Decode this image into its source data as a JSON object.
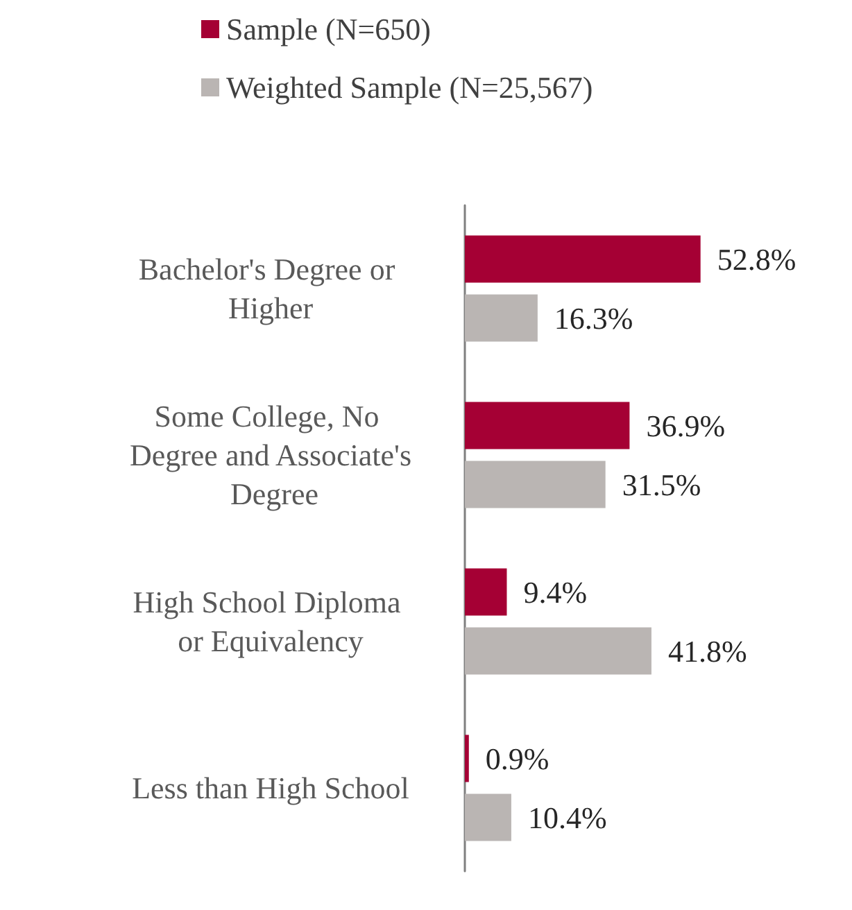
{
  "chart_data": {
    "type": "bar",
    "orientation": "horizontal",
    "categories": [
      "Bachelor's Degree or Higher",
      "Some College, No Degree and Associate's Degree",
      "High School Diploma or Equivalency",
      "Less than High School"
    ],
    "series": [
      {
        "name": "Sample (N=650)",
        "color": "#a50034",
        "values": [
          52.8,
          36.9,
          9.4,
          0.9
        ],
        "value_labels": [
          "52.8%",
          "36.9%",
          "9.4%",
          "0.9%"
        ]
      },
      {
        "name": "Weighted Sample (N=25,567)",
        "color": "#bab5b3",
        "values": [
          16.3,
          31.5,
          41.8,
          10.4
        ],
        "value_labels": [
          "16.3%",
          "31.5%",
          "41.8%",
          "10.4%"
        ]
      }
    ],
    "legend": "top",
    "tick_labels": "y"
  }
}
